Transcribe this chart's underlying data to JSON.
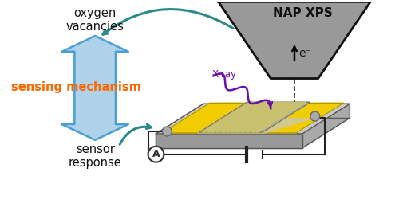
{
  "bg_color": "#ffffff",
  "nap_xps_label": "NAP XPS",
  "e_label": "e⁻",
  "xray_label": "X-ray",
  "xray_color": "#6a0dad",
  "oxygen_label": "oxygen\nvacancies",
  "sensor_response_label": "sensor\nresponse",
  "sensing_mechanism_label": "sensing mechanism",
  "sensing_color": "#ff6600",
  "blue_fill": "#a8cce8",
  "blue_edge": "#4a9fd4",
  "teal_color": "#2a8a8a",
  "device_gray": "#c8c8c8",
  "device_dark": "#aaaaaa",
  "device_side": "#999999",
  "yellow": "#f0cc00",
  "sensing_film": "#b0ac98",
  "nap_gray": "#999999",
  "nap_edge": "#111111",
  "wire_color": "#222222",
  "ammeter_bg": "#ffffff"
}
